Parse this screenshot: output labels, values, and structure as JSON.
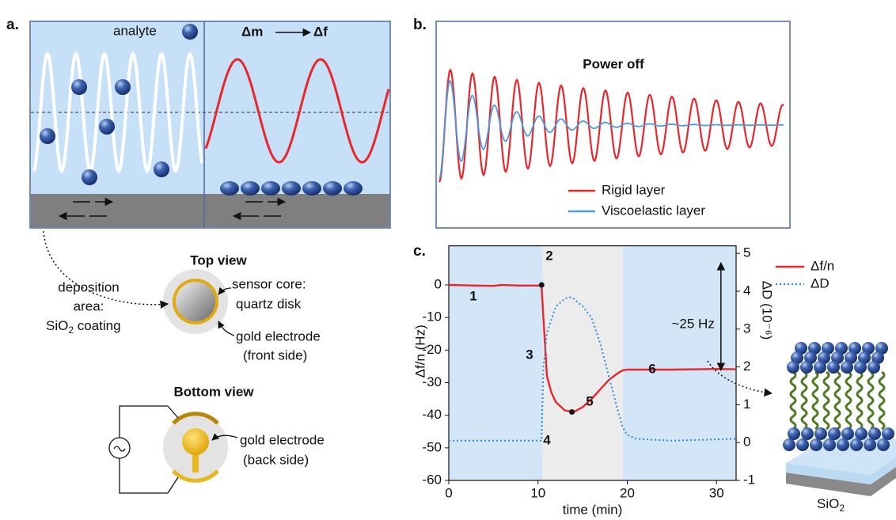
{
  "panel_a": {
    "label": "a.",
    "analyte": "analyte",
    "mass_change": "Δm",
    "frequency_change": "Δf"
  },
  "top_view": {
    "title": "Top view",
    "deposition": [
      "deposition",
      "area:"
    ],
    "coating": {
      "chem": "SiO",
      "sub": "2",
      "text": " coating"
    },
    "sensor": [
      "sensor core:",
      "quartz disk"
    ],
    "electrode": [
      "gold electrode",
      "(front side)"
    ]
  },
  "bottom_view": {
    "title": "Bottom view",
    "electrode": [
      "gold electrode",
      "(back side)"
    ]
  },
  "panel_b": {
    "label": "b.",
    "title": "Power off",
    "series": [
      {
        "name": "Rigid layer",
        "color": "#e8262c"
      },
      {
        "name": "Viscoelastic layer",
        "color": "#4a9be0"
      }
    ]
  },
  "bilayer_label": {
    "chem": "SiO",
    "sub": "2"
  },
  "chart_data": {
    "type": "line",
    "label": "c.",
    "xlabel": "time (min)",
    "ylabel": "Δf/n (Hz)",
    "y2label": "ΔD  (10⁻⁶)",
    "xlim": [
      0,
      32.2
    ],
    "xticks": [
      0,
      10,
      20,
      30
    ],
    "ylim": [
      -60,
      12
    ],
    "yticks": [
      0,
      -10,
      -20,
      -30,
      -40,
      -50,
      -60
    ],
    "y2lim": [
      -1,
      5.2
    ],
    "y2ticks": [
      5,
      4,
      3,
      2,
      1,
      0,
      -1
    ],
    "regions": [
      {
        "x0": 0,
        "x1": 10.5,
        "color": "#d3e6f8"
      },
      {
        "x0": 10.5,
        "x1": 19.5,
        "color": "#ececec"
      },
      {
        "x0": 19.5,
        "x1": 32.2,
        "color": "#d3e6f8"
      }
    ],
    "series": [
      {
        "name": "Δf/n",
        "color": "#e8262c",
        "dash": false,
        "x": [
          0,
          3,
          5,
          6,
          8,
          10,
          10.4,
          10.6,
          11,
          11.5,
          12,
          13,
          14,
          15,
          16,
          17,
          18,
          19,
          19.5,
          20,
          25,
          30,
          32.2
        ],
        "values": [
          0,
          -0.2,
          -0.3,
          0,
          -0.2,
          -0.2,
          -0.3,
          -10,
          -28,
          -33,
          -36,
          -38.5,
          -39,
          -37.5,
          -35,
          -32,
          -29,
          -27,
          -26.2,
          -26,
          -26,
          -25.8,
          -25.9
        ]
      },
      {
        "name": "ΔD",
        "color": "#2a8ee0",
        "dash": true,
        "axis": "y2",
        "x": [
          0,
          5,
          10,
          10.4,
          10.6,
          11,
          12,
          13,
          13.5,
          14,
          15,
          16,
          17,
          18,
          19,
          19.5,
          20,
          21,
          25,
          32.2
        ],
        "values": [
          0.05,
          0.05,
          0.05,
          0.05,
          2.0,
          2.9,
          3.6,
          3.8,
          3.85,
          3.8,
          3.6,
          3.3,
          2.6,
          1.7,
          0.8,
          0.4,
          0.2,
          0.1,
          0.05,
          0.1
        ]
      }
    ],
    "markers": [
      {
        "x": 10.4,
        "y": 0
      },
      {
        "x": 13.8,
        "y": -39
      }
    ],
    "annotations": [
      "1",
      "2",
      "3",
      "4",
      "5",
      "6"
    ],
    "range_arrow": {
      "x": 30.5,
      "y0": 0,
      "y1": -25,
      "label": "~25 Hz"
    }
  }
}
